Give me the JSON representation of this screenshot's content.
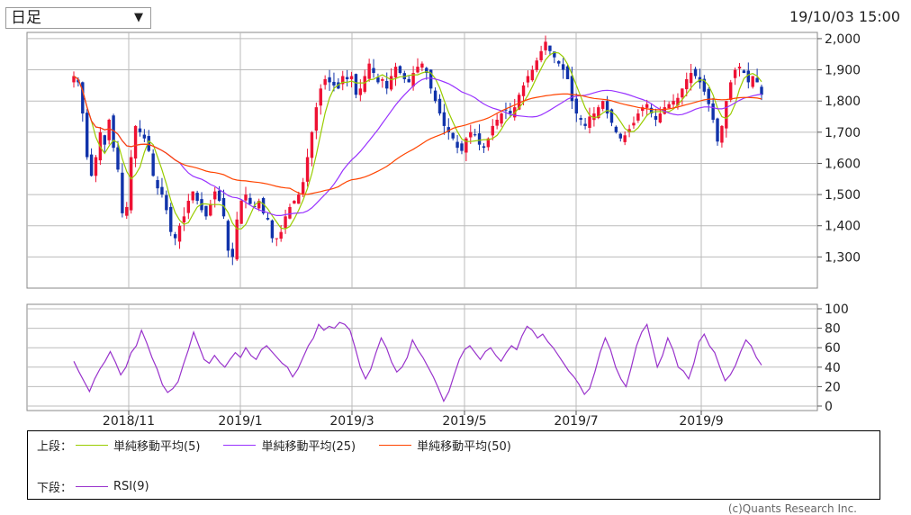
{
  "selector": {
    "value": "日足"
  },
  "timestamp": "19/10/03 15:00",
  "legend": {
    "upper_label": "上段：",
    "lower_label": "下段：",
    "items_upper": [
      {
        "name": "単純移動平均(5)",
        "color": "#99cc00"
      },
      {
        "name": "単純移動平均(25)",
        "color": "#9933ff"
      },
      {
        "name": "単純移動平均(50)",
        "color": "#ff4400"
      }
    ],
    "items_lower": [
      {
        "name": "RSI(9)",
        "color": "#9933cc"
      }
    ]
  },
  "credit": "(c)Quants Research Inc.",
  "chart_data": [
    {
      "type": "candlestick",
      "up_color": "#ee1133",
      "down_color": "#1133aa",
      "ylim": [
        1200,
        2020
      ],
      "yticks": [
        "1,300",
        "1,400",
        "1,500",
        "1,600",
        "1,700",
        "1,800",
        "1,900",
        "2,000"
      ],
      "ytick_values": [
        1300,
        1400,
        1500,
        1600,
        1700,
        1800,
        1900,
        2000
      ],
      "grid": true,
      "series_close": [
        1880,
        1860,
        1760,
        1620,
        1560,
        1620,
        1700,
        1660,
        1740,
        1650,
        1580,
        1440,
        1460,
        1620,
        1720,
        1700,
        1680,
        1640,
        1560,
        1520,
        1500,
        1450,
        1380,
        1360,
        1400,
        1430,
        1480,
        1510,
        1480,
        1450,
        1430,
        1470,
        1510,
        1480,
        1430,
        1320,
        1300,
        1420,
        1480,
        1500,
        1470,
        1460,
        1480,
        1440,
        1420,
        1360,
        1360,
        1380,
        1430,
        1460,
        1480,
        1500,
        1540,
        1620,
        1700,
        1780,
        1840,
        1870,
        1860,
        1850,
        1840,
        1880,
        1870,
        1880,
        1820,
        1840,
        1880,
        1920,
        1890,
        1860,
        1870,
        1840,
        1880,
        1910,
        1890,
        1870,
        1860,
        1890,
        1910,
        1920,
        1890,
        1840,
        1800,
        1760,
        1720,
        1700,
        1680,
        1650,
        1640,
        1680,
        1700,
        1690,
        1660,
        1650,
        1680,
        1720,
        1740,
        1760,
        1770,
        1760,
        1780,
        1820,
        1850,
        1880,
        1900,
        1930,
        1960,
        1990,
        1960,
        1940,
        1920,
        1900,
        1870,
        1800,
        1760,
        1740,
        1720,
        1750,
        1760,
        1780,
        1800,
        1760,
        1730,
        1700,
        1680,
        1690,
        1710,
        1730,
        1760,
        1780,
        1790,
        1760,
        1740,
        1760,
        1780,
        1790,
        1800,
        1810,
        1840,
        1870,
        1890,
        1880,
        1860,
        1830,
        1790,
        1740,
        1670,
        1720,
        1800,
        1860,
        1900,
        1910,
        1890,
        1860,
        1880,
        1860,
        1820
      ],
      "lines": [
        {
          "name": "単純移動平均(5)",
          "color": "#99cc00"
        },
        {
          "name": "単純移動平均(25)",
          "color": "#9933ff"
        },
        {
          "name": "単純移動平均(50)",
          "color": "#ff4400"
        }
      ]
    },
    {
      "type": "line",
      "ylim": [
        0,
        100
      ],
      "yticks": [
        "0",
        "20",
        "40",
        "60",
        "80",
        "100"
      ],
      "ytick_values": [
        0,
        20,
        40,
        60,
        80,
        100
      ],
      "grid": true,
      "series": [
        {
          "name": "RSI(9)",
          "color": "#9933cc",
          "values": [
            46,
            35,
            25,
            15,
            28,
            38,
            46,
            56,
            45,
            32,
            40,
            55,
            62,
            78,
            65,
            50,
            38,
            22,
            14,
            18,
            25,
            42,
            58,
            76,
            62,
            48,
            44,
            52,
            45,
            40,
            48,
            55,
            50,
            60,
            52,
            48,
            58,
            62,
            56,
            50,
            44,
            40,
            30,
            38,
            50,
            62,
            70,
            84,
            78,
            82,
            80,
            86,
            84,
            78,
            60,
            40,
            28,
            38,
            55,
            70,
            60,
            45,
            35,
            40,
            50,
            68,
            58,
            50,
            40,
            30,
            18,
            5,
            15,
            32,
            48,
            58,
            62,
            55,
            48,
            56,
            60,
            52,
            46,
            55,
            62,
            58,
            72,
            82,
            78,
            70,
            74,
            66,
            60,
            52,
            44,
            36,
            30,
            22,
            12,
            18,
            35,
            55,
            70,
            58,
            40,
            28,
            20,
            40,
            62,
            76,
            84,
            62,
            40,
            52,
            70,
            58,
            40,
            36,
            28,
            44,
            66,
            74,
            62,
            55,
            40,
            26,
            32,
            42,
            56,
            68,
            62,
            50,
            42
          ]
        }
      ]
    }
  ],
  "x_axis": {
    "labels": [
      "2018/11",
      "2019/1",
      "2019/3",
      "2019/5",
      "2019/7",
      "2019/9"
    ]
  }
}
